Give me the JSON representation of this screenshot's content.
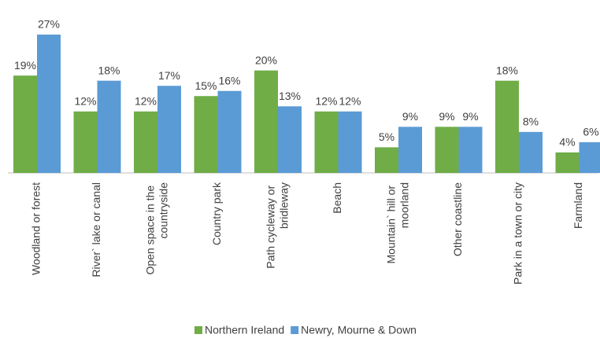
{
  "chart_data": {
    "type": "bar",
    "categories": [
      "Woodland or forest",
      "River` lake or canal",
      "Open space in the countryside",
      "Country park",
      "Path cycleway or bridleway",
      "Beach",
      "Mountain` hill or moorland",
      "Other coastline",
      "Park in a town or city",
      "Farmland"
    ],
    "series": [
      {
        "name": "Northern Ireland",
        "color": "#70ad47",
        "values": [
          19,
          12,
          12,
          15,
          20,
          12,
          5,
          9,
          18,
          4
        ],
        "value_labels": [
          "19%",
          "12%",
          "12%",
          "15%",
          "20%",
          "12%",
          "5%",
          "9%",
          "18%",
          "4%"
        ]
      },
      {
        "name": "Newry, Mourne & Down",
        "color": "#5b9bd5",
        "values": [
          27,
          18,
          17,
          16,
          13,
          12,
          9,
          9,
          8,
          6
        ],
        "value_labels": [
          "27%",
          "18%",
          "17%",
          "16%",
          "13%",
          "12%",
          "9%",
          "9%",
          "8%",
          "6%"
        ]
      }
    ],
    "legend": "bottom"
  }
}
